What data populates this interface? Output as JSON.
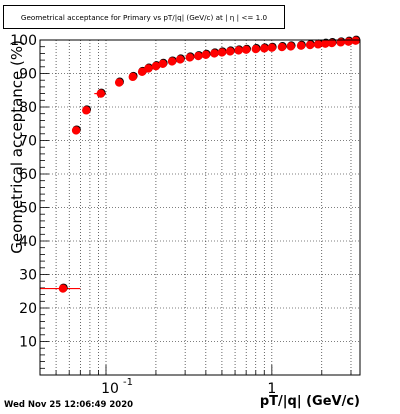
{
  "title": "Geometrical acceptance for Primary vs pT/|q| (GeV/c) at | η | <= 1.0",
  "timestamp": "Wed Nov 25 12:06:49 2020",
  "colors": {
    "frame": "#000000",
    "grid": "#000000",
    "marker_main": "#ff0000",
    "marker_shadow": "#000000"
  },
  "chart_data": {
    "type": "scatter",
    "title": "Geometrical acceptance for Primary vs pT/|q| (GeV/c) at | η | <= 1.0",
    "xlabel": "pT/|q| (GeV/c)",
    "ylabel": "Geometrical acceptance (%)",
    "xscale": "log",
    "xlim": [
      0.04,
      3.4
    ],
    "ylim": [
      0,
      100
    ],
    "grid": true,
    "x_ticks": [
      {
        "value": 0.1,
        "base": "10",
        "exp": "-1"
      },
      {
        "value": 1,
        "label": "1"
      }
    ],
    "y_ticks": [
      {
        "value": 10,
        "label": "10"
      },
      {
        "value": 20,
        "label": "20"
      },
      {
        "value": 30,
        "label": "30"
      },
      {
        "value": 40,
        "label": "40"
      },
      {
        "value": 50,
        "label": "50"
      },
      {
        "value": 60,
        "label": "60"
      },
      {
        "value": 70,
        "label": "70"
      },
      {
        "value": 80,
        "label": "80"
      },
      {
        "value": 90,
        "label": "90"
      },
      {
        "value": 100,
        "label": "100"
      }
    ],
    "series": [
      {
        "marker": "circle",
        "color": "#ff0000",
        "points": [
          {
            "x": 0.055,
            "y": 25.8,
            "xerr": [
              0.04,
              0.07
            ]
          },
          {
            "x": 0.066,
            "y": 73.0
          },
          {
            "x": 0.076,
            "y": 79.0
          },
          {
            "x": 0.093,
            "y": 84.0,
            "xerr": [
              0.085,
              0.1
            ]
          },
          {
            "x": 0.12,
            "y": 87.3
          },
          {
            "x": 0.145,
            "y": 89.0
          },
          {
            "x": 0.165,
            "y": 90.5
          },
          {
            "x": 0.18,
            "y": 91.5
          },
          {
            "x": 0.2,
            "y": 92.2
          },
          {
            "x": 0.22,
            "y": 92.9
          },
          {
            "x": 0.25,
            "y": 93.6
          },
          {
            "x": 0.28,
            "y": 94.2
          },
          {
            "x": 0.32,
            "y": 94.8
          },
          {
            "x": 0.36,
            "y": 95.2
          },
          {
            "x": 0.4,
            "y": 95.6
          },
          {
            "x": 0.45,
            "y": 96.0
          },
          {
            "x": 0.5,
            "y": 96.3
          },
          {
            "x": 0.56,
            "y": 96.6
          },
          {
            "x": 0.63,
            "y": 96.9
          },
          {
            "x": 0.7,
            "y": 97.1
          },
          {
            "x": 0.8,
            "y": 97.3
          },
          {
            "x": 0.9,
            "y": 97.5
          },
          {
            "x": 1.0,
            "y": 97.7
          },
          {
            "x": 1.15,
            "y": 97.9
          },
          {
            "x": 1.3,
            "y": 98.1
          },
          {
            "x": 1.5,
            "y": 98.3
          },
          {
            "x": 1.7,
            "y": 98.5
          },
          {
            "x": 1.9,
            "y": 98.7
          },
          {
            "x": 2.1,
            "y": 98.9
          },
          {
            "x": 2.3,
            "y": 99.1
          },
          {
            "x": 2.6,
            "y": 99.3
          },
          {
            "x": 2.9,
            "y": 99.5
          },
          {
            "x": 3.2,
            "y": 99.8
          }
        ]
      }
    ]
  }
}
